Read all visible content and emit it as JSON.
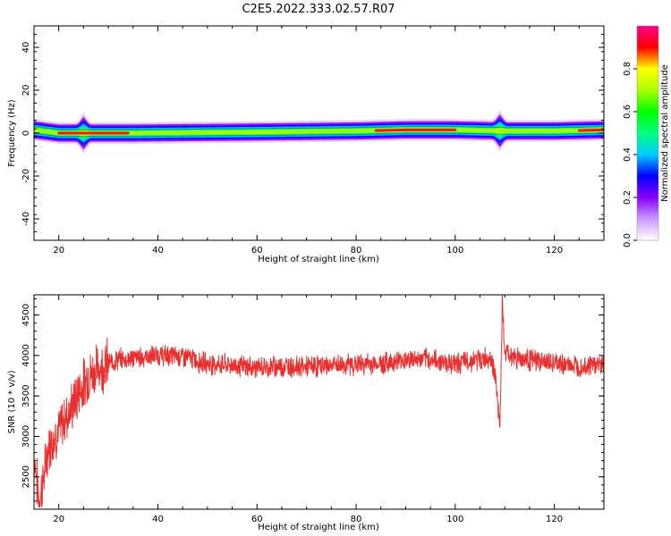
{
  "title": "C2E5.2022.333.02.57.R07",
  "chart_data": [
    {
      "type": "heatmap",
      "xlabel": "Height of straight line (km)",
      "ylabel": "Frequency (Hz)",
      "xlim": [
        15,
        130
      ],
      "ylim": [
        -50,
        50
      ],
      "xticks": [
        20,
        40,
        60,
        80,
        100,
        120
      ],
      "yticks": [
        40,
        20,
        0,
        -20,
        -40
      ],
      "colorbar": {
        "label": "Normalized spectral amplitude",
        "range": [
          0,
          1
        ],
        "ticks": [
          "0.0",
          "0.2",
          "0.4",
          "0.6",
          "0.8"
        ],
        "colors": [
          "#ffffff",
          "#cc99ff",
          "#8800ff",
          "#0000ff",
          "#00ccff",
          "#00ff80",
          "#00ff00",
          "#aaff00",
          "#ffff00",
          "#ff0000",
          "#ff0088"
        ]
      },
      "band": {
        "center_hz": 0,
        "half_width_hz": 5,
        "peak_ridge": [
          {
            "x": 15,
            "y": 1.5
          },
          {
            "x": 20,
            "y": 0
          },
          {
            "x": 25,
            "y": 0
          },
          {
            "x": 35,
            "y": 0
          },
          {
            "x": 60,
            "y": 0.5
          },
          {
            "x": 80,
            "y": 1
          },
          {
            "x": 90,
            "y": 1.5
          },
          {
            "x": 100,
            "y": 1.5
          },
          {
            "x": 110,
            "y": 1
          },
          {
            "x": 120,
            "y": 1
          },
          {
            "x": 130,
            "y": 1.5
          }
        ],
        "spikes_km": [
          25,
          109
        ]
      }
    },
    {
      "type": "line",
      "xlabel": "Height of straight line (km)",
      "ylabel": "SNR (10 * v/v)",
      "xlim": [
        15,
        130
      ],
      "ylim": [
        2100,
        4750
      ],
      "xticks": [
        20,
        40,
        60,
        80,
        100,
        120
      ],
      "yticks": [
        2500,
        3000,
        3500,
        4000,
        4500
      ],
      "color": "#e83030",
      "series": [
        {
          "x": [
            15,
            16,
            17,
            18,
            19,
            20,
            21,
            22,
            23,
            24,
            25,
            26,
            27,
            28,
            30,
            32,
            35,
            40,
            45,
            50,
            55,
            60,
            65,
            70,
            75,
            80,
            85,
            90,
            95,
            100,
            105,
            107,
            108,
            109,
            109.5,
            110,
            111,
            112,
            115,
            120,
            125,
            130
          ],
          "y": [
            2800,
            2200,
            2500,
            2900,
            3000,
            3050,
            3200,
            3300,
            3400,
            3550,
            3650,
            3750,
            3800,
            3850,
            3900,
            3950,
            3970,
            4000,
            3990,
            3900,
            3880,
            3850,
            3870,
            3860,
            3880,
            3890,
            3900,
            3950,
            3950,
            3900,
            3950,
            3980,
            3800,
            3100,
            4600,
            4050,
            4000,
            3980,
            3950,
            3900,
            3870,
            3900
          ]
        }
      ]
    }
  ]
}
